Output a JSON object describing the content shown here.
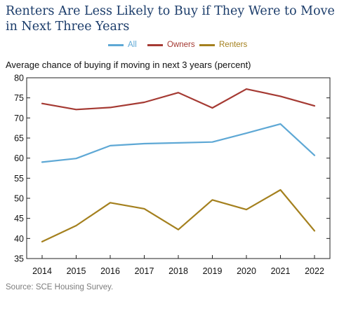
{
  "title": "Renters Are Less Likely to Buy if They Were to Move in Next Three Years",
  "source": "Source: SCE Housing Survey.",
  "chart_data": {
    "type": "line",
    "title": "Renters Are Less Likely to Buy if They Were to Move in Next Three Years",
    "ylabel": "Average chance of buying if moving in next 3 years (percent)",
    "xlabel": "",
    "x": [
      "2014",
      "2015",
      "2016",
      "2017",
      "2018",
      "2019",
      "2020",
      "2021",
      "2022"
    ],
    "ylim": [
      35,
      80
    ],
    "yticks": [
      "35",
      "40",
      "45",
      "50",
      "55",
      "60",
      "65",
      "70",
      "75",
      "80"
    ],
    "grid": false,
    "legend_position": "top-center",
    "series": [
      {
        "name": "All",
        "color": "#5ea8d5",
        "values": [
          59.0,
          59.9,
          63.1,
          63.6,
          63.8,
          64.0,
          66.2,
          68.5,
          60.7
        ]
      },
      {
        "name": "Owners",
        "color": "#a53a33",
        "values": [
          73.6,
          72.1,
          72.6,
          73.9,
          76.3,
          72.5,
          77.2,
          75.4,
          73.0
        ]
      },
      {
        "name": "Renters",
        "color": "#a4801e",
        "values": [
          39.2,
          43.2,
          48.9,
          47.4,
          42.2,
          49.6,
          47.2,
          52.1,
          41.9
        ]
      }
    ]
  }
}
